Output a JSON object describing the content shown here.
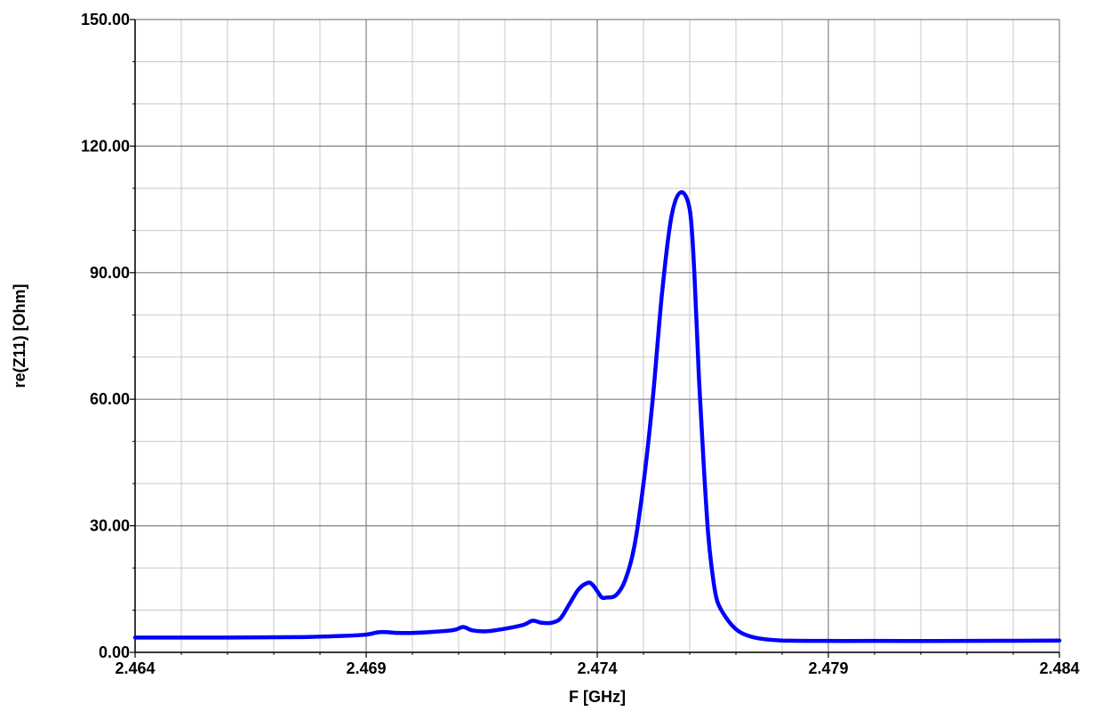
{
  "chart_data": {
    "type": "line",
    "xlabel": "F [GHz]",
    "ylabel": "re(Z11) [Ohm]",
    "xlim": [
      2.464,
      2.484
    ],
    "ylim": [
      0,
      150
    ],
    "x_ticks": [
      "2.464",
      "2.469",
      "2.474",
      "2.479",
      "2.484"
    ],
    "y_ticks": [
      "0.00",
      "30.00",
      "60.00",
      "90.00",
      "120.00",
      "150.00"
    ],
    "grid": true,
    "colors": {
      "series": "#0000ff",
      "major_grid": "#808080",
      "minor_grid": "#c8c8c8"
    },
    "series": [
      {
        "x": [
          2.464,
          2.466,
          2.4675,
          2.4685,
          2.469,
          2.4693,
          2.4697,
          2.47,
          2.4705,
          2.4709,
          2.4711,
          2.4713,
          2.4716,
          2.472,
          2.4724,
          2.4726,
          2.4728,
          2.473,
          2.4732,
          2.4734,
          2.4736,
          2.4738,
          2.4739,
          2.474,
          2.4741,
          2.4742,
          2.4744,
          2.4746,
          2.4748,
          2.475,
          2.4752,
          2.4754,
          2.4756,
          2.4758,
          2.476,
          2.4761,
          2.4762,
          2.4763,
          2.4764,
          2.4765,
          2.4766,
          2.4768,
          2.477,
          2.4772,
          2.4775,
          2.478,
          2.479,
          2.48,
          2.482,
          2.484
        ],
        "y": [
          3.5,
          3.5,
          3.6,
          3.9,
          4.2,
          4.8,
          4.6,
          4.6,
          4.9,
          5.3,
          6.0,
          5.2,
          5.0,
          5.6,
          6.5,
          7.5,
          7.0,
          7.0,
          8.0,
          11.5,
          15.0,
          16.5,
          16.0,
          14.5,
          13.0,
          13.0,
          13.5,
          17.0,
          25.0,
          40.0,
          60.0,
          85.0,
          103.0,
          109.0,
          105.0,
          90.0,
          65.0,
          45.0,
          28.0,
          18.0,
          12.0,
          8.0,
          5.5,
          4.2,
          3.3,
          2.8,
          2.7,
          2.7,
          2.7,
          2.8
        ]
      }
    ]
  }
}
